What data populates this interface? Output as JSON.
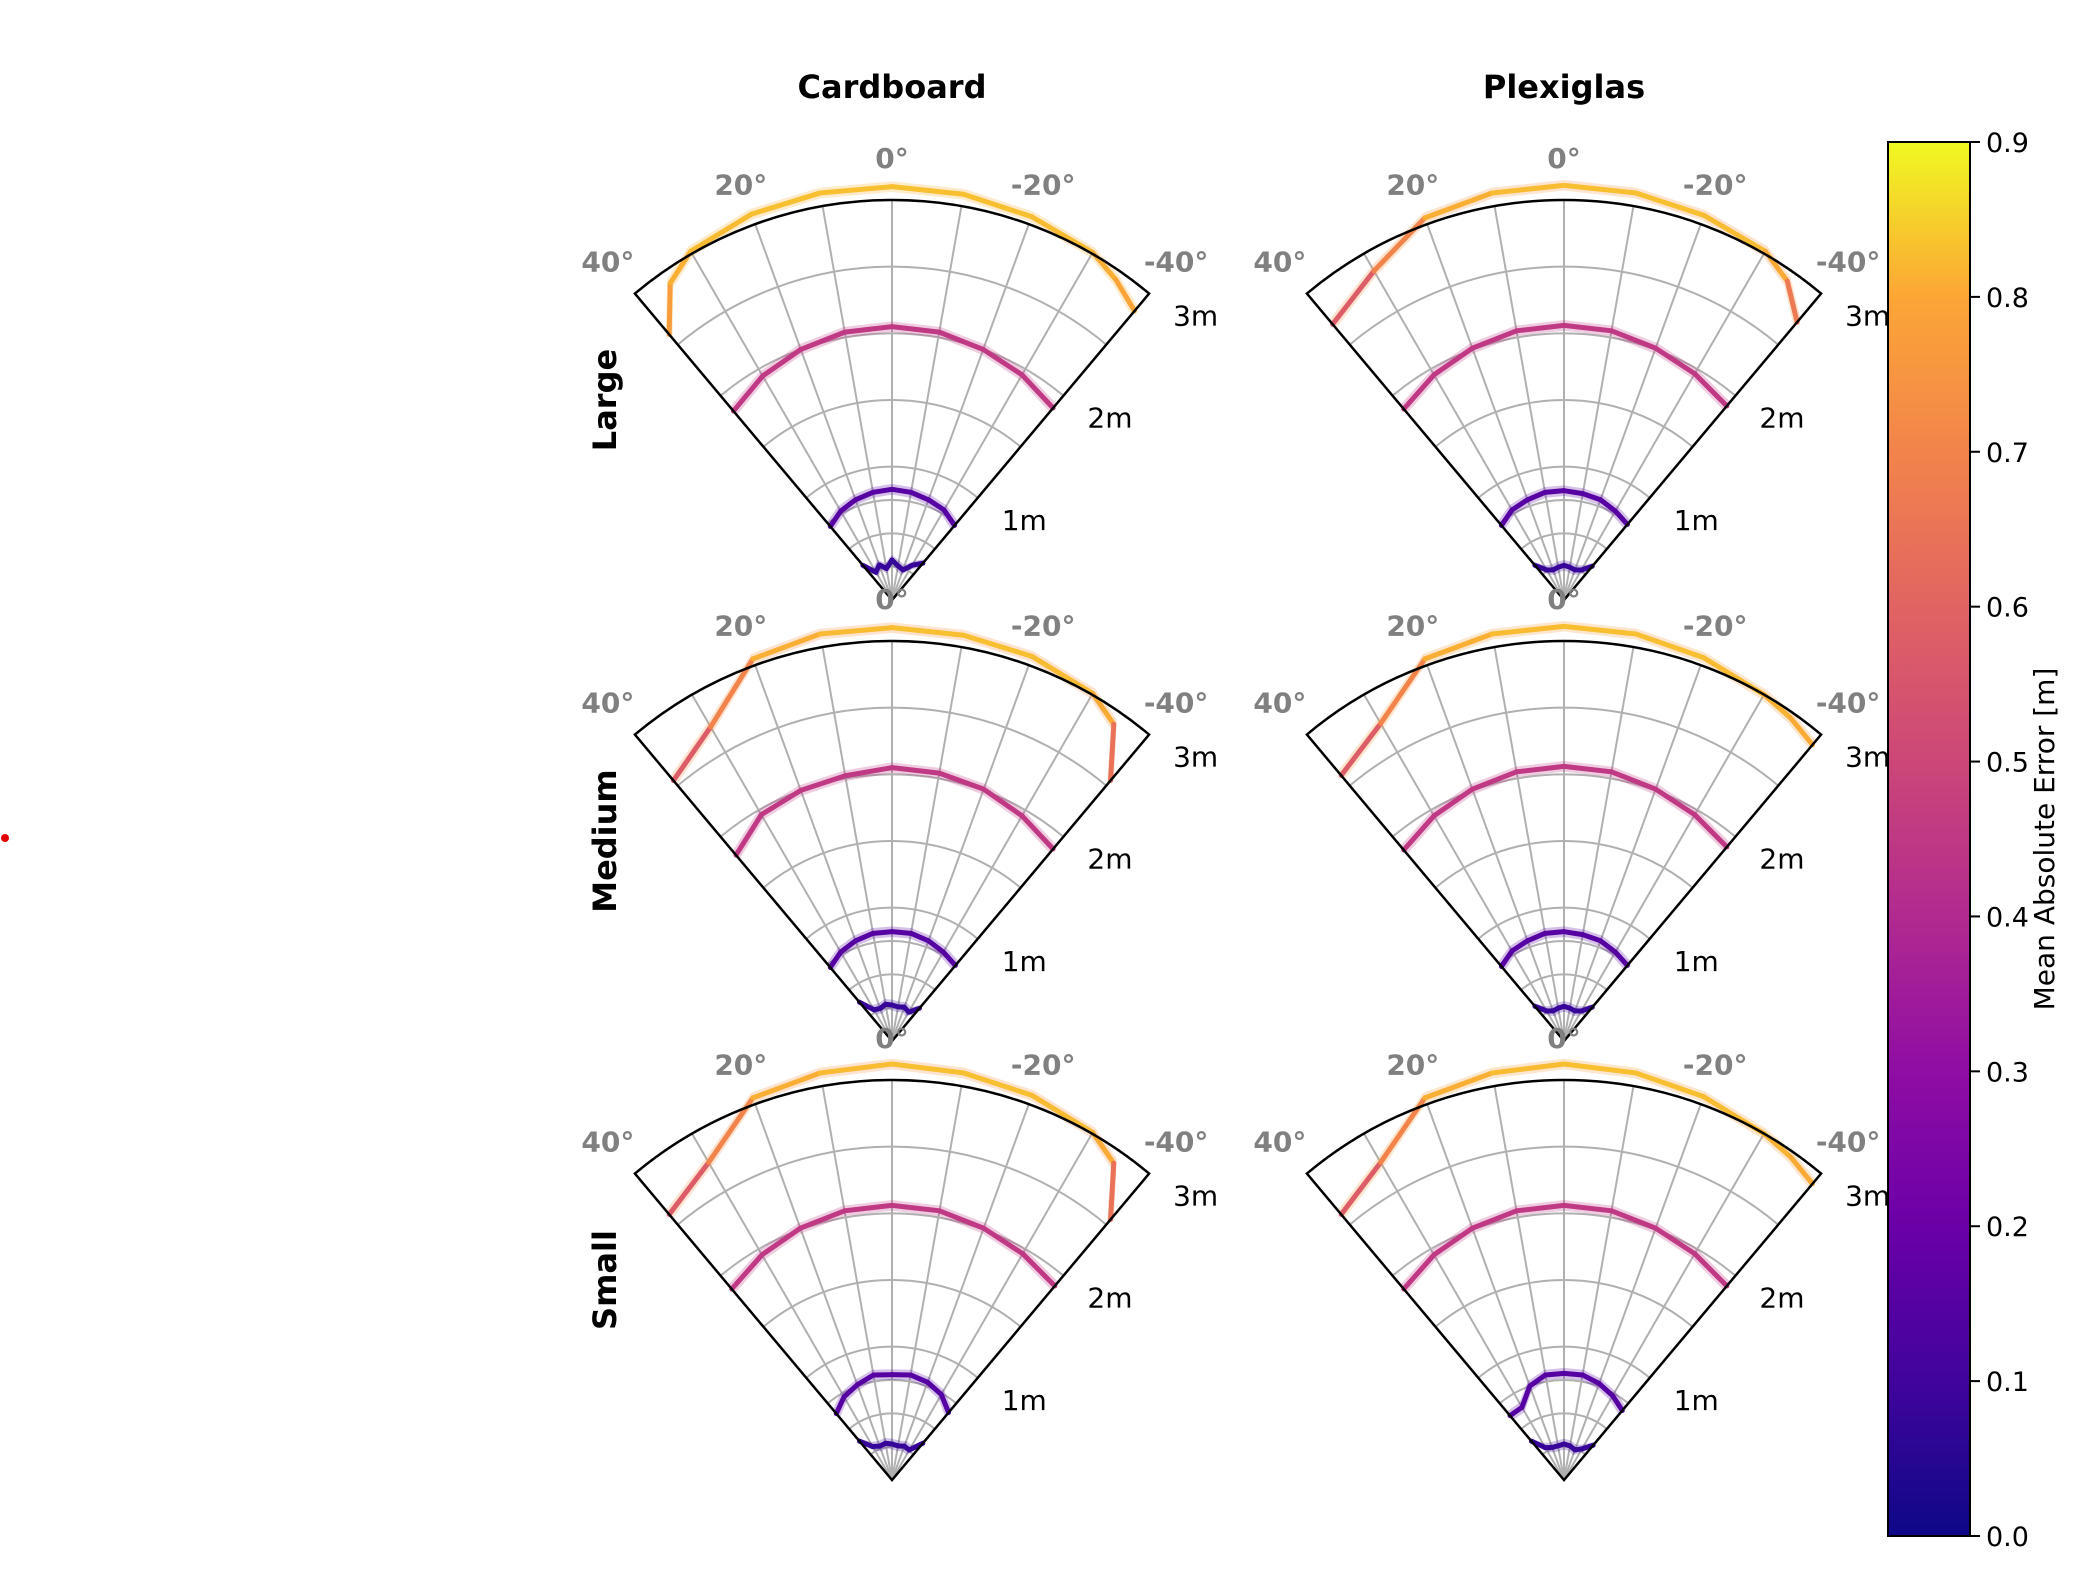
{
  "chart_data": {
    "type": "polar-sector-grid",
    "columns": [
      "Cardboard",
      "Plexiglas"
    ],
    "rows": [
      "Large",
      "Medium",
      "Small"
    ],
    "theta_ticks": [
      "40°",
      "20°",
      "0°",
      "-20°",
      "-40°"
    ],
    "theta_range_deg": [
      -40,
      40
    ],
    "radial_ticks": [
      "1m",
      "2m",
      "3m"
    ],
    "r_max": 3.0,
    "grid": true,
    "colorbar": {
      "label": "Mean Absolute Error [m]",
      "colormap": "plasma",
      "range": [
        0.0,
        0.9
      ],
      "ticks": [
        "0.0",
        "0.1",
        "0.2",
        "0.3",
        "0.4",
        "0.5",
        "0.6",
        "0.7",
        "0.8",
        "0.9"
      ]
    },
    "panels": [
      {
        "column": "Cardboard",
        "row": "Large",
        "curves": [
          {
            "theta": [
              40,
              35,
              30,
              20,
              10,
              0,
              -10,
              -20,
              -30,
              -35,
              -40
            ],
            "r": [
              2.6,
              2.9,
              3.02,
              3.08,
              3.1,
              3.1,
              3.09,
              3.06,
              3.01,
              2.93,
              2.83
            ],
            "err": [
              0.74,
              0.8,
              0.82,
              0.83,
              0.83,
              0.83,
              0.83,
              0.83,
              0.82,
              0.8,
              0.79
            ]
          },
          {
            "theta": [
              40,
              30,
              20,
              10,
              0,
              -10,
              -20,
              -30,
              -40
            ],
            "r": [
              1.85,
              1.94,
              2.0,
              2.04,
              2.05,
              2.04,
              2.0,
              1.95,
              1.88
            ],
            "err": [
              0.45,
              0.45,
              0.45,
              0.45,
              0.45,
              0.45,
              0.45,
              0.45,
              0.45
            ]
          },
          {
            "theta": [
              40,
              30,
              20,
              10,
              0,
              -10,
              -20,
              -30,
              -40
            ],
            "r": [
              0.72,
              0.77,
              0.8,
              0.82,
              0.83,
              0.82,
              0.8,
              0.78,
              0.73
            ],
            "err": [
              0.15,
              0.15,
              0.15,
              0.15,
              0.15,
              0.15,
              0.15,
              0.15,
              0.15
            ]
          },
          {
            "theta": [
              40,
              30,
              20,
              10,
              0,
              -10,
              -20,
              -30,
              -40
            ],
            "r": [
              0.34,
              0.24,
              0.28,
              0.24,
              0.3,
              0.26,
              0.24,
              0.3,
              0.36
            ],
            "err": [
              0.08,
              0.08,
              0.08,
              0.08,
              0.08,
              0.08,
              0.08,
              0.08,
              0.08
            ]
          }
        ]
      },
      {
        "column": "Plexiglas",
        "row": "Large",
        "curves": [
          {
            "theta": [
              40,
              30,
              20,
              10,
              0,
              -10,
              -20,
              -30,
              -35,
              -40
            ],
            "r": [
              2.7,
              2.85,
              3.05,
              3.1,
              3.11,
              3.1,
              3.07,
              3.02,
              2.92,
              2.72
            ],
            "err": [
              0.55,
              0.6,
              0.8,
              0.82,
              0.83,
              0.83,
              0.83,
              0.82,
              0.79,
              0.55
            ]
          },
          {
            "theta": [
              40,
              30,
              20,
              10,
              0,
              -10,
              -20,
              -30,
              -40
            ],
            "r": [
              1.87,
              1.95,
              2.01,
              2.05,
              2.06,
              2.05,
              2.01,
              1.96,
              1.9
            ],
            "err": [
              0.45,
              0.45,
              0.45,
              0.45,
              0.45,
              0.45,
              0.45,
              0.45,
              0.45
            ]
          },
          {
            "theta": [
              40,
              30,
              20,
              10,
              0,
              -10,
              -20,
              -30,
              -40
            ],
            "r": [
              0.73,
              0.78,
              0.8,
              0.82,
              0.82,
              0.81,
              0.8,
              0.77,
              0.74
            ],
            "err": [
              0.15,
              0.15,
              0.15,
              0.15,
              0.15,
              0.15,
              0.15,
              0.15,
              0.15
            ]
          },
          {
            "theta": [
              40,
              30,
              20,
              10,
              0,
              -10,
              -20,
              -30,
              -40
            ],
            "r": [
              0.34,
              0.26,
              0.24,
              0.25,
              0.26,
              0.25,
              0.24,
              0.26,
              0.33
            ],
            "err": [
              0.08,
              0.08,
              0.08,
              0.08,
              0.08,
              0.08,
              0.08,
              0.08,
              0.08
            ]
          }
        ]
      },
      {
        "column": "Cardboard",
        "row": "Medium",
        "curves": [
          {
            "theta": [
              40,
              30,
              20,
              10,
              0,
              -10,
              -20,
              -30,
              -35,
              -40
            ],
            "r": [
              2.55,
              2.72,
              3.05,
              3.1,
              3.1,
              3.09,
              3.07,
              3.01,
              2.9,
              2.55
            ],
            "err": [
              0.55,
              0.6,
              0.8,
              0.82,
              0.83,
              0.83,
              0.83,
              0.82,
              0.79,
              0.5
            ]
          },
          {
            "theta": [
              40,
              30,
              20,
              10,
              0,
              -10,
              -20,
              -30,
              -40
            ],
            "r": [
              1.82,
              1.96,
              2.0,
              2.02,
              2.05,
              2.04,
              2.01,
              1.95,
              1.88
            ],
            "err": [
              0.45,
              0.45,
              0.45,
              0.45,
              0.45,
              0.45,
              0.45,
              0.45,
              0.45
            ]
          },
          {
            "theta": [
              40,
              30,
              20,
              10,
              0,
              -10,
              -20,
              -30,
              -40
            ],
            "r": [
              0.72,
              0.77,
              0.8,
              0.82,
              0.82,
              0.82,
              0.8,
              0.77,
              0.74
            ],
            "err": [
              0.15,
              0.15,
              0.15,
              0.15,
              0.15,
              0.15,
              0.15,
              0.15,
              0.15
            ]
          },
          {
            "theta": [
              40,
              30,
              20,
              10,
              0,
              -10,
              -20,
              -30,
              -40
            ],
            "r": [
              0.38,
              0.27,
              0.26,
              0.28,
              0.27,
              0.26,
              0.27,
              0.25,
              0.32
            ],
            "err": [
              0.08,
              0.08,
              0.08,
              0.08,
              0.08,
              0.08,
              0.08,
              0.08,
              0.08
            ]
          }
        ]
      },
      {
        "column": "Plexiglas",
        "row": "Medium",
        "curves": [
          {
            "theta": [
              40,
              30,
              20,
              10,
              0,
              -10,
              -20,
              -30,
              -35,
              -40
            ],
            "r": [
              2.6,
              2.75,
              3.05,
              3.1,
              3.11,
              3.1,
              3.06,
              3.0,
              2.96,
              2.9
            ],
            "err": [
              0.55,
              0.6,
              0.8,
              0.82,
              0.83,
              0.83,
              0.83,
              0.82,
              0.81,
              0.8
            ]
          },
          {
            "theta": [
              40,
              30,
              20,
              10,
              0,
              -10,
              -20,
              -30,
              -40
            ],
            "r": [
              1.87,
              1.95,
              2.01,
              2.05,
              2.06,
              2.05,
              2.01,
              1.96,
              1.9
            ],
            "err": [
              0.45,
              0.45,
              0.45,
              0.45,
              0.45,
              0.45,
              0.45,
              0.45,
              0.45
            ]
          },
          {
            "theta": [
              40,
              30,
              20,
              10,
              0,
              -10,
              -20,
              -30,
              -40
            ],
            "r": [
              0.73,
              0.78,
              0.8,
              0.82,
              0.82,
              0.81,
              0.8,
              0.77,
              0.74
            ],
            "err": [
              0.15,
              0.15,
              0.15,
              0.15,
              0.15,
              0.15,
              0.15,
              0.15,
              0.15
            ]
          },
          {
            "theta": [
              40,
              30,
              20,
              10,
              0,
              -10,
              -20,
              -30,
              -40
            ],
            "r": [
              0.34,
              0.26,
              0.24,
              0.25,
              0.26,
              0.25,
              0.24,
              0.26,
              0.33
            ],
            "err": [
              0.08,
              0.08,
              0.08,
              0.08,
              0.08,
              0.08,
              0.08,
              0.08,
              0.08
            ]
          }
        ]
      },
      {
        "column": "Cardboard",
        "row": "Small",
        "curves": [
          {
            "theta": [
              40,
              30,
              20,
              10,
              0,
              -10,
              -20,
              -30,
              -35,
              -40
            ],
            "r": [
              2.6,
              2.75,
              3.05,
              3.1,
              3.12,
              3.1,
              3.07,
              3.01,
              2.9,
              2.55
            ],
            "err": [
              0.55,
              0.6,
              0.8,
              0.82,
              0.83,
              0.83,
              0.83,
              0.82,
              0.79,
              0.5
            ]
          },
          {
            "theta": [
              40,
              30,
              20,
              10,
              0,
              -10,
              -20,
              -30,
              -40
            ],
            "r": [
              1.87,
              1.95,
              2.01,
              2.05,
              2.06,
              2.05,
              2.01,
              1.96,
              1.9
            ],
            "err": [
              0.45,
              0.45,
              0.45,
              0.45,
              0.45,
              0.45,
              0.45,
              0.45,
              0.45
            ]
          },
          {
            "theta": [
              40,
              30,
              20,
              10,
              0,
              -10,
              -20,
              -30,
              -40
            ],
            "r": [
              0.65,
              0.72,
              0.76,
              0.8,
              0.79,
              0.8,
              0.78,
              0.74,
              0.66
            ],
            "err": [
              0.15,
              0.15,
              0.15,
              0.15,
              0.15,
              0.15,
              0.15,
              0.15,
              0.15
            ]
          },
          {
            "theta": [
              40,
              30,
              20,
              10,
              0,
              -10,
              -20,
              -30,
              -40
            ],
            "r": [
              0.38,
              0.29,
              0.27,
              0.28,
              0.27,
              0.26,
              0.27,
              0.26,
              0.36
            ],
            "err": [
              0.08,
              0.08,
              0.08,
              0.08,
              0.08,
              0.08,
              0.08,
              0.08,
              0.08
            ]
          }
        ]
      },
      {
        "column": "Plexiglas",
        "row": "Small",
        "curves": [
          {
            "theta": [
              40,
              30,
              20,
              10,
              0,
              -10,
              -20,
              -30,
              -35,
              -40
            ],
            "r": [
              2.6,
              2.75,
              3.05,
              3.1,
              3.12,
              3.1,
              3.06,
              3.0,
              2.96,
              2.9
            ],
            "err": [
              0.55,
              0.6,
              0.8,
              0.82,
              0.83,
              0.83,
              0.83,
              0.82,
              0.81,
              0.8
            ]
          },
          {
            "theta": [
              40,
              30,
              20,
              10,
              0,
              -10,
              -20,
              -30,
              -40
            ],
            "r": [
              1.87,
              1.95,
              2.01,
              2.05,
              2.06,
              2.05,
              2.01,
              1.96,
              1.9
            ],
            "err": [
              0.45,
              0.45,
              0.45,
              0.45,
              0.45,
              0.45,
              0.45,
              0.45,
              0.45
            ]
          },
          {
            "theta": [
              40,
              30,
              20,
              10,
              0,
              -10,
              -20,
              -30,
              -40
            ],
            "r": [
              0.63,
              0.63,
              0.75,
              0.8,
              0.8,
              0.8,
              0.77,
              0.73,
              0.68
            ],
            "err": [
              0.15,
              0.15,
              0.15,
              0.15,
              0.15,
              0.15,
              0.15,
              0.15,
              0.15
            ]
          },
          {
            "theta": [
              40,
              30,
              20,
              10,
              0,
              -10,
              -20,
              -30,
              -40
            ],
            "r": [
              0.38,
              0.28,
              0.26,
              0.26,
              0.27,
              0.26,
              0.24,
              0.27,
              0.34
            ],
            "err": [
              0.08,
              0.08,
              0.08,
              0.08,
              0.08,
              0.08,
              0.08,
              0.08,
              0.08
            ]
          }
        ]
      }
    ]
  }
}
